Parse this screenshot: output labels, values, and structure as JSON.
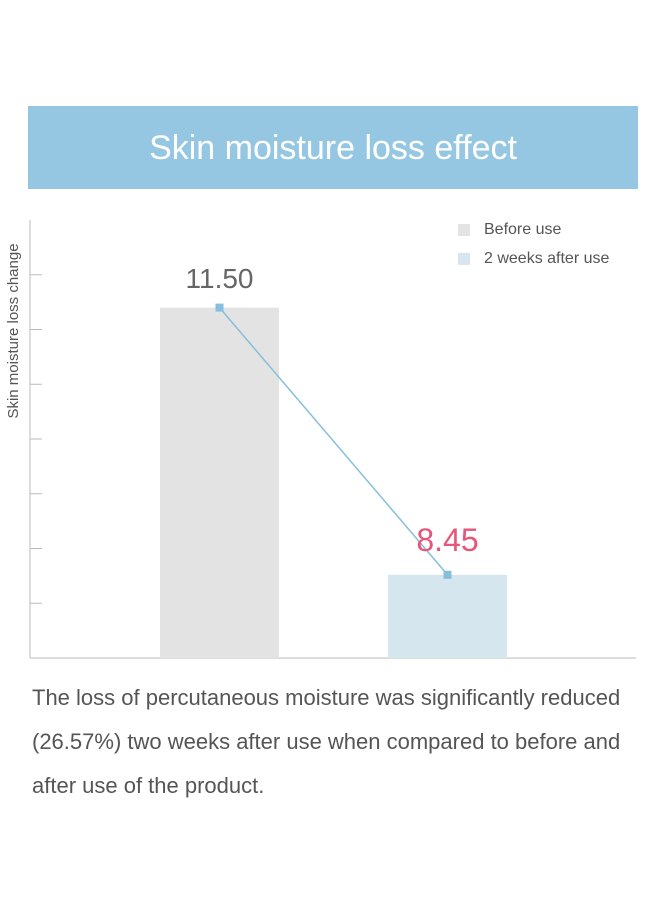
{
  "chart_data": {
    "type": "bar",
    "title": "Skin moisture loss effect",
    "y_label": "Skin moisture loss change",
    "categories": [
      "Before use",
      "2 weeks after use"
    ],
    "values": [
      11.5,
      8.45
    ],
    "value_labels": [
      "11.50",
      "8.45"
    ],
    "colors": [
      "#e3e3e3",
      "#d6e6ef"
    ],
    "label_colors": [
      "#666666",
      "#e8557a"
    ],
    "trend_line_color": "#86bfdc",
    "ylim": [
      7.5,
      12.5
    ],
    "yticks": [
      8.125,
      8.75,
      9.375,
      10,
      10.625,
      11.25,
      11.875
    ],
    "legend": "top-right",
    "banner_color": "#95c7e3",
    "note": "The loss of percutaneous moisture was significantly reduced (26.57%) two weeks after use when compared to before and after use of the product."
  }
}
